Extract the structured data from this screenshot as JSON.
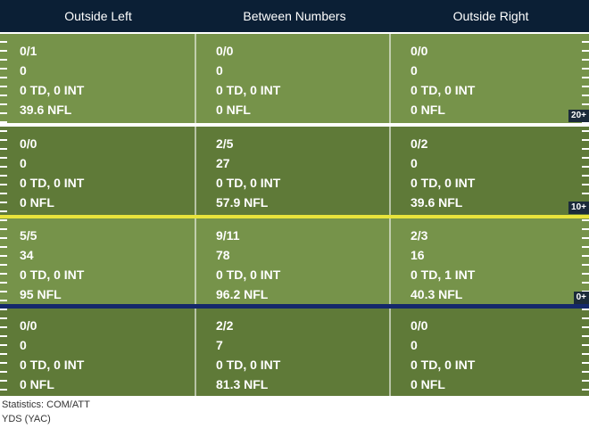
{
  "columns": [
    "Outside Left",
    "Between Numbers",
    "Outside Right"
  ],
  "zones": [
    {
      "label": "20+",
      "cells": [
        [
          "0/1",
          "0",
          "0 TD, 0 INT",
          "39.6 NFL"
        ],
        [
          "0/0",
          "0",
          "0 TD, 0 INT",
          "0 NFL"
        ],
        [
          "0/0",
          "0",
          "0 TD, 0 INT",
          "0 NFL"
        ]
      ]
    },
    {
      "label": "10+",
      "cells": [
        [
          "0/0",
          "0",
          "0 TD, 0 INT",
          "0 NFL"
        ],
        [
          "2/5",
          "27",
          "0 TD, 0 INT",
          "57.9 NFL"
        ],
        [
          "0/2",
          "0",
          "0 TD, 0 INT",
          "39.6 NFL"
        ]
      ]
    },
    {
      "label": "0+",
      "cells": [
        [
          "5/5",
          "34",
          "0 TD, 0 INT",
          "95 NFL"
        ],
        [
          "9/11",
          "78",
          "0 TD, 0 INT",
          "96.2 NFL"
        ],
        [
          "2/3",
          "16",
          "0 TD, 1 INT",
          "40.3 NFL"
        ]
      ]
    },
    {
      "label": "",
      "cells": [
        [
          "0/0",
          "0",
          "0 TD, 0 INT",
          "0 NFL"
        ],
        [
          "2/2",
          "7",
          "0 TD, 0 INT",
          "81.3 NFL"
        ],
        [
          "0/0",
          "0",
          "0 TD, 0 INT",
          "0 NFL"
        ]
      ]
    }
  ],
  "legend": {
    "line1": "Statistics: COM/ATT",
    "line2": "YDS (YAC)"
  },
  "colors": {
    "header_bg": "#0b1f35",
    "field_light": "#76934a",
    "field_dark": "#5f7a38",
    "line_of_scrimmage": "#14286b",
    "first_down_line": "#e9e43c"
  }
}
